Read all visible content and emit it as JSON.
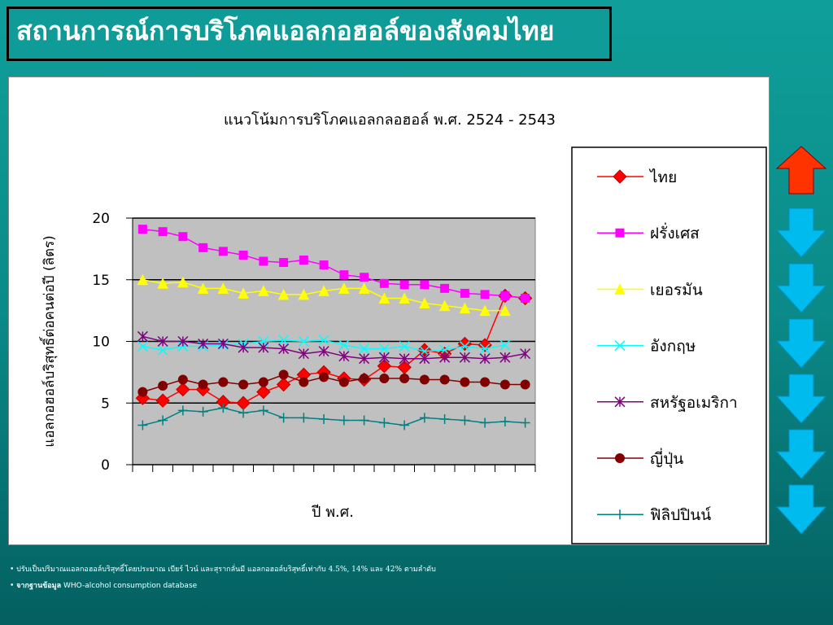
{
  "slide_title": "สถานการณ์การบริโภคแอลกอฮอล์ของสังคมไทย",
  "chart_data": {
    "type": "line",
    "title": "แนวโน้มการบริโภคแอลกลอฮอล์ พ.ศ. 2524 - 2543",
    "x_label": "ปี พ.ศ.",
    "y_label": "แอลกอฮอล์บริสุทธิ์ต่อคนต่อปี (ลิตร)",
    "categories": [
      null,
      null,
      null,
      null,
      null,
      null,
      null,
      null,
      null,
      null,
      null,
      null,
      null,
      null,
      null,
      null,
      null,
      null,
      null,
      null
    ],
    "ylim": [
      0,
      20
    ],
    "yticks": [
      0,
      5,
      10,
      15,
      20
    ],
    "grid": true,
    "plot_background": "#c0c0c0",
    "legend": "right",
    "series": [
      {
        "name": "ไทย",
        "color": "#ff0000",
        "marker": "diamond",
        "values": [
          5.4,
          5.2,
          6.1,
          6.1,
          5.1,
          5.0,
          5.9,
          6.5,
          7.3,
          7.5,
          7.0,
          6.9,
          8.0,
          7.9,
          9.3,
          9.0,
          9.8,
          9.7,
          13.7,
          13.5
        ]
      },
      {
        "name": "ฝรั่งเศส",
        "color": "#ff00ff",
        "marker": "square",
        "values": [
          19.1,
          18.9,
          18.5,
          17.6,
          17.3,
          17.0,
          16.5,
          16.4,
          16.6,
          16.2,
          15.4,
          15.2,
          14.7,
          14.6,
          14.6,
          14.3,
          13.9,
          13.8,
          13.7,
          13.5
        ]
      },
      {
        "name": "เยอรมัน",
        "color": "#ffff00",
        "marker": "triangle",
        "values": [
          15.0,
          14.7,
          14.8,
          14.3,
          14.3,
          13.9,
          14.1,
          13.8,
          13.8,
          14.1,
          14.3,
          14.3,
          13.5,
          13.5,
          13.1,
          12.9,
          12.7,
          12.5,
          12.5,
          null
        ]
      },
      {
        "name": "อังกฤษ",
        "color": "#00ffff",
        "marker": "x",
        "values": [
          9.6,
          9.3,
          9.6,
          9.6,
          9.7,
          9.8,
          10.0,
          10.1,
          10.0,
          10.1,
          9.7,
          9.4,
          9.4,
          9.6,
          9.2,
          9.3,
          9.6,
          9.4,
          9.7,
          null
        ]
      },
      {
        "name": "สหรัฐอเมริกา",
        "color": "#800080",
        "marker": "star",
        "values": [
          10.4,
          10.0,
          10.0,
          9.8,
          9.8,
          9.5,
          9.5,
          9.4,
          9.0,
          9.2,
          8.8,
          8.6,
          8.7,
          8.6,
          8.6,
          8.7,
          8.7,
          8.6,
          8.7,
          9.0
        ]
      },
      {
        "name": "ญี่ปุ่น",
        "color": "#800000",
        "marker": "circle",
        "values": [
          5.9,
          6.4,
          6.9,
          6.5,
          6.7,
          6.5,
          6.7,
          7.3,
          6.7,
          7.1,
          6.7,
          7.0,
          7.0,
          7.0,
          6.9,
          6.9,
          6.7,
          6.7,
          6.5,
          6.5
        ]
      },
      {
        "name": "ฟิลิปปินน์",
        "color": "#008080",
        "marker": "plus",
        "values": [
          3.2,
          3.6,
          4.4,
          4.3,
          4.6,
          4.2,
          4.4,
          3.8,
          3.8,
          3.7,
          3.6,
          3.6,
          3.4,
          3.2,
          3.8,
          3.7,
          3.6,
          3.4,
          3.5,
          3.4
        ]
      }
    ]
  },
  "footnotes": [
    {
      "text": "ปรับเป็นปริมาณแอลกอฮอล์บริสุทธิ์โดยประมาณ เบียร์ ไวน์ และสุรากลั่นมี แอลกอฮอล์บริสุทธิ์เท่ากับ  4.5%, 14% และ 42% ตามลำดับ"
    },
    {
      "label": "จากฐานข้อมูล",
      "text": "WHO-alcohol consumption database"
    }
  ]
}
